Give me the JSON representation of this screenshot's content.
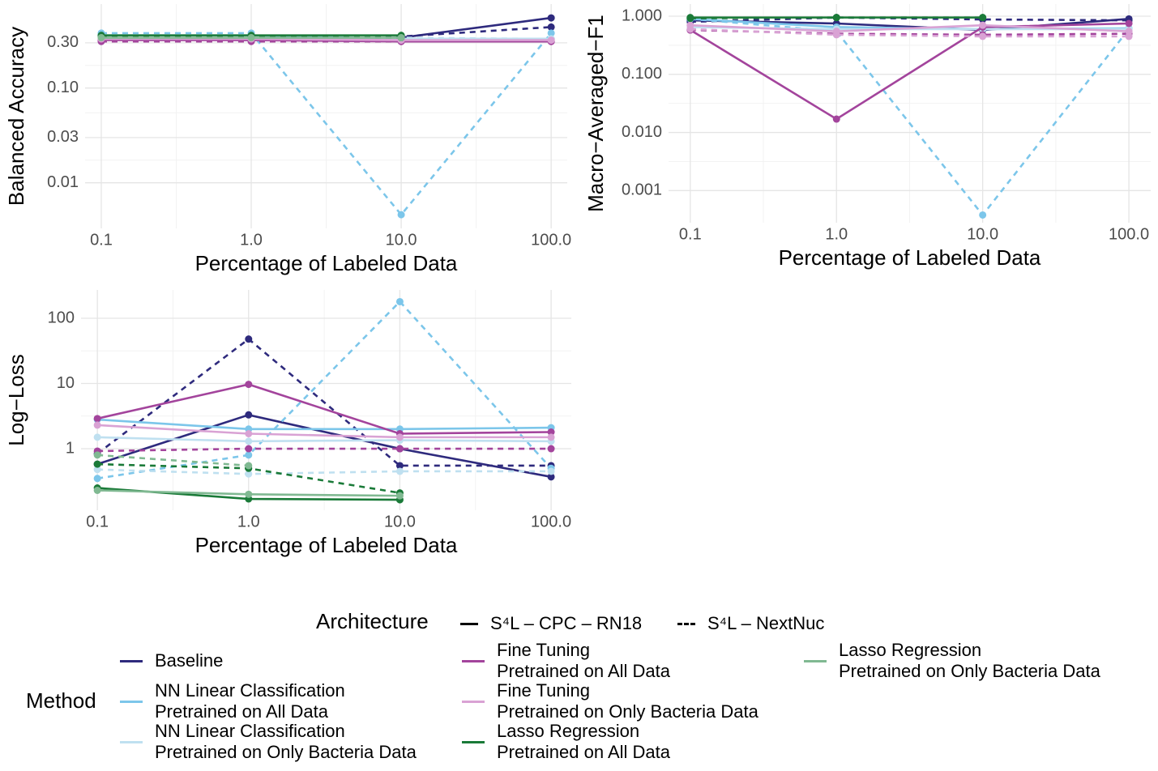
{
  "chart_data": [
    {
      "type": "line",
      "ylabel": "Balanced Accuracy",
      "xlabel": "Percentage of Labeled Data",
      "log_x": true,
      "log_y": true,
      "grid": true,
      "x": [
        0.1,
        1,
        10,
        100
      ],
      "xlim": [
        0.078,
        128
      ],
      "ylim": [
        0.0033,
        0.77
      ],
      "xticks": [
        0.1,
        {
          "value": 1,
          "label": "1.0"
        },
        {
          "value": 10,
          "label": "10.0"
        },
        {
          "value": 100,
          "label": "100.0"
        }
      ],
      "yticks": [
        0.01,
        0.03,
        {
          "value": 0.1,
          "label": "0.10"
        },
        {
          "value": 0.3,
          "label": "0.30"
        }
      ],
      "series": [
        {
          "name": "Baseline",
          "architecture": "S⁴L – CPC – RN18",
          "color": "#2e2a7d",
          "values": [
            0.34,
            0.32,
            0.34,
            0.55
          ]
        },
        {
          "name": "Baseline",
          "architecture": "S⁴L – NextNuc",
          "color": "#2e2a7d",
          "values": [
            0.32,
            0.32,
            0.35,
            0.44
          ]
        },
        {
          "name": "NN Linear Classification\nPretrained on All Data",
          "architecture": "S⁴L – CPC – RN18",
          "color": "#7cc6ea",
          "values": [
            0.36,
            0.36,
            0.33,
            0.33
          ]
        },
        {
          "name": "NN Linear Classification\nPretrained on All Data",
          "architecture": "S⁴L – NextNuc",
          "color": "#7cc6ea",
          "values": [
            0.38,
            0.38,
            0.0046,
            0.38
          ]
        },
        {
          "name": "NN Linear Classification\nPretrained on Only Bacteria Data",
          "architecture": "S⁴L – CPC – RN18",
          "color": "#bfe0f0",
          "values": [
            0.33,
            0.33,
            0.33,
            0.33
          ]
        },
        {
          "name": "NN Linear Classification\nPretrained on Only Bacteria Data",
          "architecture": "S⁴L – NextNuc",
          "color": "#bfe0f0",
          "values": [
            0.31,
            0.36,
            0.34,
            0.33
          ]
        },
        {
          "name": "Fine Tuning\nPretrained on All Data",
          "architecture": "S⁴L – CPC – RN18",
          "color": "#a3449c",
          "values": [
            0.32,
            0.32,
            0.31,
            0.31
          ]
        },
        {
          "name": "Fine Tuning\nPretrained on All Data",
          "architecture": "S⁴L – NextNuc",
          "color": "#a3449c",
          "values": [
            0.31,
            0.31,
            0.31,
            0.31
          ]
        },
        {
          "name": "Fine Tuning\nPretrained on Only Bacteria Data",
          "architecture": "S⁴L – CPC – RN18",
          "color": "#d9a2d4",
          "values": [
            0.33,
            0.33,
            0.32,
            0.32
          ]
        },
        {
          "name": "Lasso Regression\nPretrained on All Data",
          "architecture": "S⁴L – CPC – RN18",
          "color": "#1a7a38",
          "values": [
            0.36,
            0.36,
            0.36,
            null
          ]
        },
        {
          "name": "Lasso Regression\nPretrained on All Data",
          "architecture": "S⁴L – NextNuc",
          "color": "#1a7a38",
          "values": [
            0.35,
            0.35,
            0.34,
            null
          ]
        },
        {
          "name": "Lasso Regression\nPretrained on Only Bacteria Data",
          "architecture": "S⁴L – CPC – RN18",
          "color": "#80b992",
          "values": [
            0.34,
            0.34,
            0.34,
            null
          ]
        }
      ]
    },
    {
      "type": "line",
      "ylabel": "Macro−Averaged−F1",
      "xlabel": "Percentage of Labeled Data",
      "log_x": true,
      "log_y": true,
      "grid": true,
      "x": [
        0.1,
        1,
        10,
        100
      ],
      "xlim": [
        0.071,
        141
      ],
      "ylim": [
        0.00028,
        1.62
      ],
      "xticks": [
        0.1,
        {
          "value": 1,
          "label": "1.0"
        },
        {
          "value": 10,
          "label": "10.0"
        },
        {
          "value": 100,
          "label": "100.0"
        }
      ],
      "yticks": [
        {
          "value": 0.001,
          "label": "0.001"
        },
        {
          "value": 0.01,
          "label": "0.010"
        },
        {
          "value": 0.1,
          "label": "0.100"
        },
        {
          "value": 1,
          "label": "1.000"
        }
      ],
      "series": [
        {
          "name": "Baseline",
          "architecture": "S⁴L – CPC – RN18",
          "color": "#2e2a7d",
          "values": [
            0.85,
            0.75,
            0.58,
            0.9
          ]
        },
        {
          "name": "Baseline",
          "architecture": "S⁴L – NextNuc",
          "color": "#2e2a7d",
          "values": [
            0.8,
            0.95,
            0.88,
            0.85
          ]
        },
        {
          "name": "NN Linear Classification\nPretrained on All Data",
          "architecture": "S⁴L – CPC – RN18",
          "color": "#7cc6ea",
          "values": [
            0.9,
            0.65,
            0.6,
            0.62
          ]
        },
        {
          "name": "NN Linear Classification\nPretrained on All Data",
          "architecture": "S⁴L – NextNuc",
          "color": "#7cc6ea",
          "values": [
            0.9,
            0.55,
            0.00038,
            0.6
          ]
        },
        {
          "name": "NN Linear Classification\nPretrained on Only Bacteria Data",
          "architecture": "S⁴L – CPC – RN18",
          "color": "#bfe0f0",
          "values": [
            0.65,
            0.6,
            0.6,
            0.6
          ]
        },
        {
          "name": "Fine Tuning\nPretrained on All Data",
          "architecture": "S⁴L – CPC – RN18",
          "color": "#a3449c",
          "values": [
            0.58,
            0.017,
            0.65,
            0.75
          ]
        },
        {
          "name": "Fine Tuning\nPretrained on All Data",
          "architecture": "S⁴L – NextNuc",
          "color": "#a3449c",
          "values": [
            0.58,
            0.5,
            0.48,
            0.5
          ]
        },
        {
          "name": "Fine Tuning\nPretrained on Only Bacteria Data",
          "architecture": "S⁴L – CPC – RN18",
          "color": "#d9a2d4",
          "values": [
            0.7,
            0.55,
            0.7,
            0.55
          ]
        },
        {
          "name": "Fine Tuning\nPretrained on Only Bacteria Data",
          "architecture": "S⁴L – NextNuc",
          "color": "#d9a2d4",
          "values": [
            0.6,
            0.48,
            0.45,
            0.45
          ]
        },
        {
          "name": "Lasso Regression\nPretrained on All Data",
          "architecture": "S⁴L – CPC – RN18",
          "color": "#1a7a38",
          "values": [
            0.95,
            0.95,
            0.95,
            null
          ]
        },
        {
          "name": "Lasso Regression\nPretrained on All Data",
          "architecture": "S⁴L – NextNuc",
          "color": "#1a7a38",
          "values": [
            0.92,
            0.95,
            0.95,
            null
          ]
        }
      ]
    },
    {
      "type": "line",
      "ylabel": "Log−Loss",
      "xlabel": "Percentage of Labeled Data",
      "log_x": true,
      "log_y": true,
      "grid": true,
      "x": [
        0.1,
        1,
        10,
        100
      ],
      "xlim": [
        0.078,
        136
      ],
      "ylim": [
        0.114,
        272
      ],
      "xticks": [
        0.1,
        {
          "value": 1,
          "label": "1.0"
        },
        {
          "value": 10,
          "label": "10.0"
        },
        {
          "value": 100,
          "label": "100.0"
        }
      ],
      "yticks": [
        1,
        10,
        100
      ],
      "series": [
        {
          "name": "Baseline",
          "architecture": "S⁴L – CPC – RN18",
          "color": "#2e2a7d",
          "values": [
            0.58,
            3.3,
            1.0,
            0.37
          ]
        },
        {
          "name": "Baseline",
          "architecture": "S⁴L – NextNuc",
          "color": "#2e2a7d",
          "values": [
            0.84,
            48,
            0.55,
            0.55
          ]
        },
        {
          "name": "NN Linear Classification\nPretrained on All Data",
          "architecture": "S⁴L – CPC – RN18",
          "color": "#7cc6ea",
          "values": [
            2.8,
            2.0,
            2.0,
            2.1
          ]
        },
        {
          "name": "NN Linear Classification\nPretrained on All Data",
          "architecture": "S⁴L – NextNuc",
          "color": "#7cc6ea",
          "values": [
            0.35,
            0.8,
            180,
            0.5
          ]
        },
        {
          "name": "NN Linear Classification\nPretrained on Only Bacteria Data",
          "architecture": "S⁴L – CPC – RN18",
          "color": "#bfe0f0",
          "values": [
            1.5,
            1.3,
            1.35,
            1.3
          ]
        },
        {
          "name": "NN Linear Classification\nPretrained on Only Bacteria Data",
          "architecture": "S⁴L – NextNuc",
          "color": "#bfe0f0",
          "values": [
            0.48,
            0.41,
            0.45,
            0.45
          ]
        },
        {
          "name": "Fine Tuning\nPretrained on All Data",
          "architecture": "S⁴L – CPC – RN18",
          "color": "#a3449c",
          "values": [
            2.9,
            9.7,
            1.7,
            1.8
          ]
        },
        {
          "name": "Fine Tuning\nPretrained on All Data",
          "architecture": "S⁴L – NextNuc",
          "color": "#a3449c",
          "values": [
            0.92,
            1.0,
            1.0,
            1.0
          ]
        },
        {
          "name": "Fine Tuning\nPretrained on Only Bacteria Data",
          "architecture": "S⁴L – CPC – RN18",
          "color": "#d9a2d4",
          "values": [
            2.3,
            1.7,
            1.5,
            1.5
          ]
        },
        {
          "name": "Lasso Regression\nPretrained on All Data",
          "architecture": "S⁴L – CPC – RN18",
          "color": "#1a7a38",
          "values": [
            0.25,
            0.17,
            0.165,
            null
          ]
        },
        {
          "name": "Lasso Regression\nPretrained on All Data",
          "architecture": "S⁴L – NextNuc",
          "color": "#1a7a38",
          "values": [
            0.58,
            0.5,
            0.21,
            null
          ]
        },
        {
          "name": "Lasso Regression\nPretrained on Only Bacteria Data",
          "architecture": "S⁴L – CPC – RN18",
          "color": "#80b992",
          "values": [
            0.23,
            0.2,
            0.19,
            null
          ]
        },
        {
          "name": "Lasso Regression\nPretrained on Only Bacteria Data",
          "architecture": "S⁴L – NextNuc",
          "color": "#80b992",
          "values": [
            0.8,
            0.55,
            null,
            null
          ]
        }
      ]
    }
  ],
  "legend": {
    "architecture_title": "Architecture",
    "architectures": [
      {
        "name": "S⁴L – CPC – RN18",
        "dash": false
      },
      {
        "name": "S⁴L – NextNuc",
        "dash": true
      }
    ],
    "method_title": "Method",
    "methods": [
      {
        "name": "Baseline",
        "color": "#2e2a7d"
      },
      {
        "name": "NN Linear Classification\nPretrained on All Data",
        "color": "#7cc6ea"
      },
      {
        "name": "NN Linear Classification\nPretrained on Only Bacteria Data",
        "color": "#bfe0f0"
      },
      {
        "name": "Fine Tuning\nPretrained on All Data",
        "color": "#a3449c"
      },
      {
        "name": "Fine Tuning\nPretrained on Only Bacteria Data",
        "color": "#d9a2d4"
      },
      {
        "name": "Lasso Regression\nPretrained on All Data",
        "color": "#1a7a38"
      },
      {
        "name": "Lasso Regression\nPretrained on Only Bacteria Data",
        "color": "#80b992"
      }
    ]
  }
}
